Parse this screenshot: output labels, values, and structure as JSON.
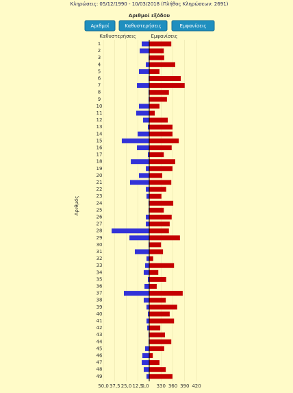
{
  "header": "Κληρώσεις:   05/12/1990 - 10/03/2018  (Πλήθος Κληρώσεων: 2691)",
  "buttons": [
    "Αριθμοί",
    "Καθυστερήσεις",
    "Εμφανίσεις"
  ],
  "chart_data": {
    "type": "bar",
    "orientation": "horizontal",
    "title": "Αριθμοί εξόδου",
    "y_label": "Αριθμός",
    "categories": [
      "1",
      "2",
      "3",
      "4",
      "5",
      "6",
      "7",
      "8",
      "9",
      "10",
      "11",
      "12",
      "13",
      "14",
      "15",
      "16",
      "17",
      "18",
      "19",
      "20",
      "21",
      "22",
      "23",
      "24",
      "25",
      "26",
      "27",
      "28",
      "29",
      "30",
      "31",
      "32",
      "33",
      "34",
      "35",
      "36",
      "37",
      "38",
      "39",
      "40",
      "41",
      "42",
      "43",
      "44",
      "45",
      "46",
      "47",
      "48",
      "49"
    ],
    "series": [
      {
        "name": "Καθυστερήσεις",
        "color": "#3232d8",
        "side": "left",
        "values": [
          8.2,
          10.4,
          0.7,
          3.7,
          11.2,
          0.7,
          13.4,
          0.7,
          0.7,
          11.2,
          14.2,
          6.7,
          1.5,
          12.7,
          29.9,
          13.4,
          1.5,
          20.1,
          3.7,
          11.2,
          20.9,
          3.7,
          3,
          0.7,
          0.7,
          3.7,
          3.7,
          41,
          21.6,
          0.7,
          15.7,
          3,
          4.5,
          6,
          1.5,
          5.2,
          27.6,
          6,
          3,
          1.5,
          3,
          2.2,
          0.7,
          0.7,
          4.5,
          7.5,
          8.2,
          6,
          3
        ]
      },
      {
        "name": "Εμφανίσεις",
        "color": "#c40000",
        "side": "right",
        "values": [
          356,
          337,
          338,
          366,
          326,
          380,
          390,
          350,
          345,
          326,
          314,
          347,
          359,
          359,
          375,
          357,
          337,
          366,
          359,
          333,
          356,
          343,
          331,
          361,
          337,
          357,
          352,
          350,
          378,
          330,
          335,
          310,
          363,
          323,
          343,
          319,
          385,
          342,
          371,
          352,
          363,
          328,
          340,
          356,
          338,
          309,
          326,
          342,
          359
        ]
      }
    ],
    "left_xlim": [
      0,
      50
    ],
    "left_xticks": [
      {
        "value": 50,
        "label": "50,0"
      },
      {
        "value": 37.5,
        "label": "37,5"
      },
      {
        "value": 25,
        "label": "25,0"
      },
      {
        "value": 12.5,
        "label": "12,5"
      },
      {
        "value": 0,
        "label": "0,0"
      }
    ],
    "right_xlim": [
      300,
      420
    ],
    "right_xticks": [
      330,
      360,
      390,
      420
    ],
    "grid": true
  }
}
